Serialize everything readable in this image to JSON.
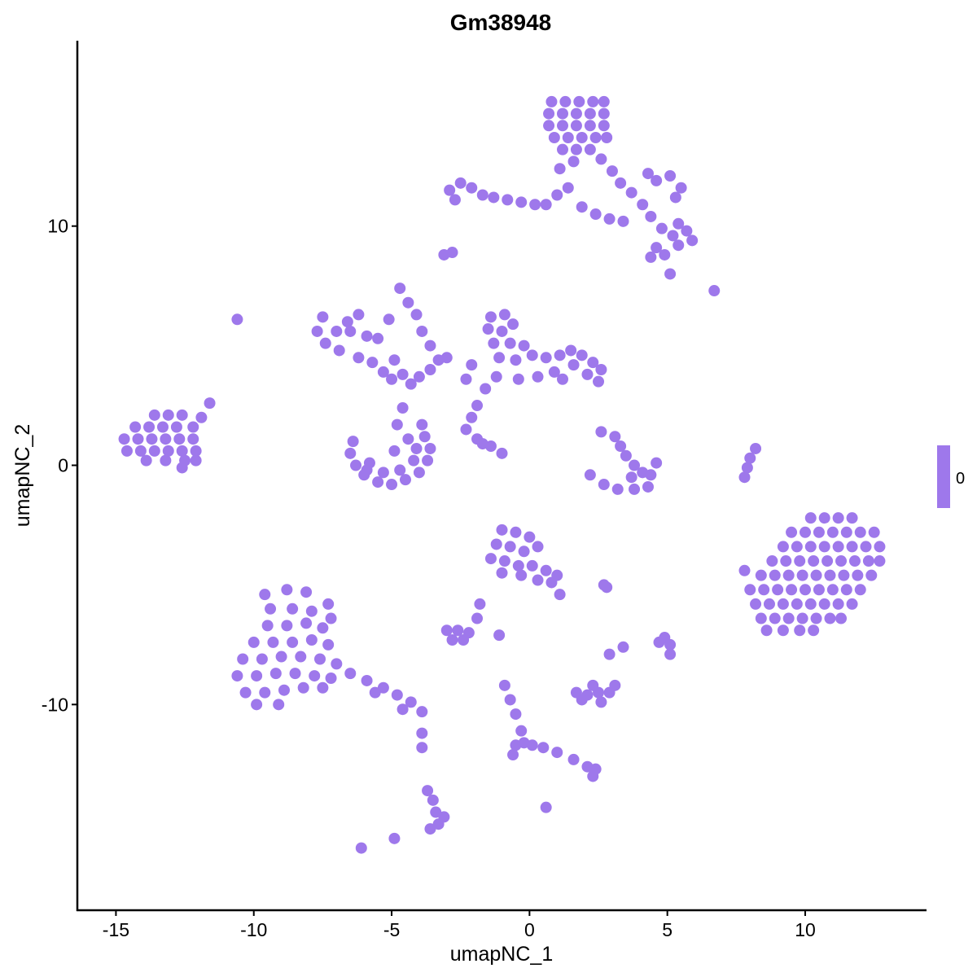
{
  "chart_data": {
    "type": "scatter",
    "title": "Gm38948",
    "xlabel": "umapNC_1",
    "ylabel": "umapNC_2",
    "xlim": [
      -16.4,
      14.4
    ],
    "ylim": [
      -18.6,
      17.75
    ],
    "x_ticks": [
      -15,
      -10,
      -5,
      0,
      5,
      10
    ],
    "x_tick_labels": [
      "-15",
      "-10",
      "-5",
      "0",
      "5",
      "10"
    ],
    "y_ticks": [
      -10,
      0,
      10
    ],
    "y_tick_labels": [
      "-10",
      "0",
      "10"
    ],
    "grid": false,
    "point_color": "#9E78EB",
    "legend": {
      "placement": "right",
      "type": "colorbar",
      "labels": [
        "0"
      ],
      "color": "#9E78EB"
    },
    "points": [
      [
        0.8,
        15.2
      ],
      [
        1.3,
        15.2
      ],
      [
        1.8,
        15.2
      ],
      [
        2.3,
        15.2
      ],
      [
        2.7,
        15.2
      ],
      [
        0.7,
        14.7
      ],
      [
        1.2,
        14.7
      ],
      [
        1.7,
        14.7
      ],
      [
        2.2,
        14.7
      ],
      [
        2.7,
        14.7
      ],
      [
        0.7,
        14.2
      ],
      [
        1.2,
        14.2
      ],
      [
        1.7,
        14.2
      ],
      [
        2.2,
        14.2
      ],
      [
        2.7,
        14.2
      ],
      [
        0.9,
        13.7
      ],
      [
        1.4,
        13.7
      ],
      [
        1.9,
        13.7
      ],
      [
        2.4,
        13.7
      ],
      [
        2.8,
        13.7
      ],
      [
        1.2,
        13.2
      ],
      [
        1.7,
        13.2
      ],
      [
        2.2,
        13.2
      ],
      [
        2.6,
        12.8
      ],
      [
        3.0,
        12.3
      ],
      [
        3.3,
        11.8
      ],
      [
        3.7,
        11.4
      ],
      [
        4.1,
        10.9
      ],
      [
        4.4,
        10.4
      ],
      [
        4.8,
        9.9
      ],
      [
        5.2,
        9.6
      ],
      [
        5.7,
        9.8
      ],
      [
        5.9,
        9.4
      ],
      [
        5.4,
        9.2
      ],
      [
        4.6,
        9.1
      ],
      [
        4.4,
        8.7
      ],
      [
        4.9,
        8.8
      ],
      [
        5.4,
        10.1
      ],
      [
        4.6,
        11.9
      ],
      [
        5.1,
        12.1
      ],
      [
        5.5,
        11.6
      ],
      [
        5.3,
        11.2
      ],
      [
        4.3,
        12.2
      ],
      [
        -2.9,
        11.5
      ],
      [
        -2.5,
        11.8
      ],
      [
        -2.1,
        11.6
      ],
      [
        -1.7,
        11.3
      ],
      [
        -2.7,
        11.1
      ],
      [
        -1.3,
        11.2
      ],
      [
        -0.8,
        11.1
      ],
      [
        -0.3,
        11.0
      ],
      [
        0.2,
        10.9
      ],
      [
        0.6,
        10.9
      ],
      [
        1.0,
        11.3
      ],
      [
        1.4,
        11.6
      ],
      [
        1.9,
        10.8
      ],
      [
        2.4,
        10.5
      ],
      [
        2.9,
        10.3
      ],
      [
        3.4,
        10.2
      ],
      [
        1.1,
        12.4
      ],
      [
        1.6,
        12.7
      ],
      [
        -3.1,
        8.8
      ],
      [
        -2.8,
        8.9
      ],
      [
        6.7,
        7.3
      ],
      [
        5.1,
        8.0
      ],
      [
        -10.6,
        6.1
      ],
      [
        -13.6,
        2.1
      ],
      [
        -13.1,
        2.1
      ],
      [
        -12.6,
        2.1
      ],
      [
        -14.3,
        1.6
      ],
      [
        -13.8,
        1.6
      ],
      [
        -13.3,
        1.6
      ],
      [
        -12.8,
        1.6
      ],
      [
        -14.7,
        1.1
      ],
      [
        -14.2,
        1.1
      ],
      [
        -13.7,
        1.1
      ],
      [
        -13.2,
        1.1
      ],
      [
        -12.7,
        1.1
      ],
      [
        -12.2,
        1.1
      ],
      [
        -14.6,
        0.6
      ],
      [
        -14.1,
        0.6
      ],
      [
        -13.6,
        0.6
      ],
      [
        -13.1,
        0.6
      ],
      [
        -12.6,
        0.6
      ],
      [
        -12.1,
        0.6
      ],
      [
        -13.9,
        0.2
      ],
      [
        -13.2,
        0.2
      ],
      [
        -12.5,
        0.2
      ],
      [
        -12.1,
        0.2
      ],
      [
        -11.9,
        2.0
      ],
      [
        -11.6,
        2.6
      ],
      [
        -12.2,
        1.6
      ],
      [
        -12.6,
        -0.1
      ],
      [
        -7.5,
        6.2
      ],
      [
        -7.7,
        5.6
      ],
      [
        -7.4,
        5.1
      ],
      [
        -7.0,
        5.6
      ],
      [
        -6.9,
        4.8
      ],
      [
        -6.5,
        5.6
      ],
      [
        -6.2,
        4.5
      ],
      [
        -5.9,
        5.4
      ],
      [
        -5.5,
        5.3
      ],
      [
        -6.6,
        6.0
      ],
      [
        -5.7,
        4.3
      ],
      [
        -5.3,
        3.9
      ],
      [
        -5.0,
        3.6
      ],
      [
        -4.6,
        3.8
      ],
      [
        -4.9,
        4.4
      ],
      [
        -4.3,
        3.4
      ],
      [
        -4.0,
        3.7
      ],
      [
        -3.6,
        4.0
      ],
      [
        -3.3,
        4.4
      ],
      [
        -3.0,
        4.5
      ],
      [
        -4.7,
        7.4
      ],
      [
        -4.4,
        6.8
      ],
      [
        -4.1,
        6.3
      ],
      [
        -3.9,
        5.6
      ],
      [
        -3.6,
        5.0
      ],
      [
        -5.1,
        6.1
      ],
      [
        -6.2,
        6.3
      ],
      [
        -6.4,
        1.0
      ],
      [
        -6.5,
        0.5
      ],
      [
        -6.3,
        0.0
      ],
      [
        -6.0,
        -0.4
      ],
      [
        -5.5,
        -0.7
      ],
      [
        -5.0,
        -0.8
      ],
      [
        -4.5,
        -0.6
      ],
      [
        -4.0,
        -0.3
      ],
      [
        -3.7,
        0.2
      ],
      [
        -3.6,
        0.7
      ],
      [
        -3.8,
        1.2
      ],
      [
        -5.8,
        0.1
      ],
      [
        -5.3,
        -0.3
      ],
      [
        -4.7,
        -0.2
      ],
      [
        -4.2,
        0.2
      ],
      [
        -4.1,
        0.7
      ],
      [
        -5.9,
        -0.2
      ],
      [
        -4.4,
        1.1
      ],
      [
        -4.8,
        1.7
      ],
      [
        -4.6,
        2.4
      ],
      [
        -3.9,
        1.7
      ],
      [
        -4.9,
        0.6
      ],
      [
        -1.4,
        6.2
      ],
      [
        -0.9,
        6.3
      ],
      [
        -1.5,
        5.7
      ],
      [
        -1.0,
        5.6
      ],
      [
        -0.6,
        5.9
      ],
      [
        -1.3,
        5.1
      ],
      [
        -0.7,
        5.1
      ],
      [
        -0.2,
        5.0
      ],
      [
        -1.1,
        4.5
      ],
      [
        -0.5,
        4.4
      ],
      [
        0.1,
        4.6
      ],
      [
        0.6,
        4.5
      ],
      [
        1.1,
        4.6
      ],
      [
        1.5,
        4.8
      ],
      [
        1.9,
        4.6
      ],
      [
        2.3,
        4.3
      ],
      [
        2.6,
        4.0
      ],
      [
        2.1,
        3.8
      ],
      [
        1.6,
        4.2
      ],
      [
        0.9,
        3.9
      ],
      [
        0.3,
        3.7
      ],
      [
        -0.4,
        3.6
      ],
      [
        -1.2,
        3.7
      ],
      [
        -1.6,
        3.2
      ],
      [
        -1.9,
        2.5
      ],
      [
        -2.1,
        2.0
      ],
      [
        -2.3,
        3.6
      ],
      [
        -2.1,
        4.2
      ],
      [
        2.5,
        3.5
      ],
      [
        1.2,
        3.6
      ],
      [
        -2.3,
        1.5
      ],
      [
        -1.9,
        1.1
      ],
      [
        -1.4,
        0.8
      ],
      [
        -1.0,
        0.5
      ],
      [
        -1.7,
        0.9
      ],
      [
        3.1,
        1.2
      ],
      [
        3.3,
        0.8
      ],
      [
        3.5,
        0.4
      ],
      [
        3.8,
        0.0
      ],
      [
        4.1,
        -0.3
      ],
      [
        4.4,
        -0.4
      ],
      [
        4.3,
        -0.9
      ],
      [
        3.8,
        -1.0
      ],
      [
        3.2,
        -1.0
      ],
      [
        2.7,
        -0.8
      ],
      [
        2.2,
        -0.4
      ],
      [
        2.6,
        1.4
      ],
      [
        3.7,
        -0.5
      ],
      [
        4.6,
        0.1
      ],
      [
        7.9,
        -0.1
      ],
      [
        8.0,
        0.3
      ],
      [
        8.2,
        0.7
      ],
      [
        7.8,
        -0.5
      ],
      [
        10.2,
        -2.2
      ],
      [
        10.7,
        -2.2
      ],
      [
        11.2,
        -2.2
      ],
      [
        11.7,
        -2.2
      ],
      [
        9.5,
        -2.8
      ],
      [
        10.0,
        -2.8
      ],
      [
        10.5,
        -2.8
      ],
      [
        11.0,
        -2.8
      ],
      [
        11.5,
        -2.8
      ],
      [
        12.0,
        -2.8
      ],
      [
        12.5,
        -2.8
      ],
      [
        9.2,
        -3.4
      ],
      [
        9.7,
        -3.4
      ],
      [
        10.2,
        -3.4
      ],
      [
        10.7,
        -3.4
      ],
      [
        11.2,
        -3.4
      ],
      [
        11.7,
        -3.4
      ],
      [
        12.2,
        -3.4
      ],
      [
        12.7,
        -3.4
      ],
      [
        8.8,
        -4.0
      ],
      [
        9.3,
        -4.0
      ],
      [
        9.8,
        -4.0
      ],
      [
        10.3,
        -4.0
      ],
      [
        10.8,
        -4.0
      ],
      [
        11.3,
        -4.0
      ],
      [
        11.8,
        -4.0
      ],
      [
        12.3,
        -4.0
      ],
      [
        12.7,
        -4.0
      ],
      [
        8.4,
        -4.6
      ],
      [
        8.9,
        -4.6
      ],
      [
        9.4,
        -4.6
      ],
      [
        9.9,
        -4.6
      ],
      [
        10.4,
        -4.6
      ],
      [
        10.9,
        -4.6
      ],
      [
        11.4,
        -4.6
      ],
      [
        11.9,
        -4.6
      ],
      [
        12.4,
        -4.6
      ],
      [
        8.0,
        -5.2
      ],
      [
        8.5,
        -5.2
      ],
      [
        9.0,
        -5.2
      ],
      [
        9.5,
        -5.2
      ],
      [
        10.0,
        -5.2
      ],
      [
        10.5,
        -5.2
      ],
      [
        11.0,
        -5.2
      ],
      [
        11.5,
        -5.2
      ],
      [
        12.0,
        -5.2
      ],
      [
        8.2,
        -5.8
      ],
      [
        8.7,
        -5.8
      ],
      [
        9.2,
        -5.8
      ],
      [
        9.7,
        -5.8
      ],
      [
        10.2,
        -5.8
      ],
      [
        10.7,
        -5.8
      ],
      [
        11.2,
        -5.8
      ],
      [
        11.7,
        -5.8
      ],
      [
        8.4,
        -6.4
      ],
      [
        8.9,
        -6.4
      ],
      [
        9.4,
        -6.4
      ],
      [
        9.9,
        -6.4
      ],
      [
        10.4,
        -6.4
      ],
      [
        10.9,
        -6.4
      ],
      [
        11.3,
        -6.4
      ],
      [
        8.6,
        -6.9
      ],
      [
        9.2,
        -6.9
      ],
      [
        9.8,
        -6.9
      ],
      [
        10.3,
        -6.9
      ],
      [
        7.8,
        -4.4
      ],
      [
        -1.0,
        -2.7
      ],
      [
        -0.5,
        -2.8
      ],
      [
        0.0,
        -3.0
      ],
      [
        0.3,
        -3.4
      ],
      [
        -1.2,
        -3.3
      ],
      [
        -0.7,
        -3.4
      ],
      [
        -0.2,
        -3.6
      ],
      [
        -1.4,
        -3.9
      ],
      [
        -0.9,
        -4.0
      ],
      [
        -0.4,
        -4.2
      ],
      [
        0.1,
        -4.2
      ],
      [
        0.6,
        -4.4
      ],
      [
        -1.0,
        -4.5
      ],
      [
        -0.3,
        -4.6
      ],
      [
        0.3,
        -4.8
      ],
      [
        0.8,
        -4.9
      ],
      [
        1.1,
        -5.4
      ],
      [
        1.0,
        -4.6
      ],
      [
        2.7,
        -5.0
      ],
      [
        2.8,
        -5.1
      ],
      [
        -9.6,
        -5.4
      ],
      [
        -8.8,
        -5.2
      ],
      [
        -8.1,
        -5.3
      ],
      [
        -9.4,
        -6.0
      ],
      [
        -8.6,
        -6.0
      ],
      [
        -7.9,
        -6.1
      ],
      [
        -9.5,
        -6.7
      ],
      [
        -8.8,
        -6.7
      ],
      [
        -8.1,
        -6.6
      ],
      [
        -7.5,
        -6.8
      ],
      [
        -10.0,
        -7.4
      ],
      [
        -9.3,
        -7.4
      ],
      [
        -8.6,
        -7.4
      ],
      [
        -7.9,
        -7.3
      ],
      [
        -7.3,
        -7.5
      ],
      [
        -10.4,
        -8.1
      ],
      [
        -9.7,
        -8.1
      ],
      [
        -9.0,
        -8.0
      ],
      [
        -8.3,
        -8.0
      ],
      [
        -7.6,
        -8.1
      ],
      [
        -7.0,
        -8.3
      ],
      [
        -10.6,
        -8.8
      ],
      [
        -9.9,
        -8.8
      ],
      [
        -9.2,
        -8.7
      ],
      [
        -8.5,
        -8.7
      ],
      [
        -7.8,
        -8.8
      ],
      [
        -7.2,
        -8.9
      ],
      [
        -10.3,
        -9.5
      ],
      [
        -9.6,
        -9.5
      ],
      [
        -8.9,
        -9.4
      ],
      [
        -8.2,
        -9.3
      ],
      [
        -7.5,
        -9.3
      ],
      [
        -9.9,
        -10.0
      ],
      [
        -9.1,
        -10.0
      ],
      [
        -6.5,
        -8.7
      ],
      [
        -5.9,
        -9.0
      ],
      [
        -5.3,
        -9.3
      ],
      [
        -4.8,
        -9.6
      ],
      [
        -4.3,
        -9.9
      ],
      [
        -3.9,
        -10.3
      ],
      [
        -4.6,
        -10.2
      ],
      [
        -5.6,
        -9.5
      ],
      [
        -7.2,
        -6.4
      ],
      [
        -7.3,
        -5.8
      ],
      [
        -3.0,
        -6.9
      ],
      [
        -2.6,
        -6.9
      ],
      [
        -2.2,
        -7.0
      ],
      [
        -2.8,
        -7.3
      ],
      [
        -2.4,
        -7.3
      ],
      [
        -1.8,
        -5.8
      ],
      [
        -1.1,
        -7.1
      ],
      [
        -1.9,
        -6.4
      ],
      [
        1.7,
        -9.5
      ],
      [
        2.1,
        -9.6
      ],
      [
        2.5,
        -9.5
      ],
      [
        2.9,
        -9.5
      ],
      [
        2.3,
        -9.2
      ],
      [
        1.9,
        -9.8
      ],
      [
        2.6,
        -9.9
      ],
      [
        3.1,
        -9.2
      ],
      [
        -0.9,
        -9.2
      ],
      [
        -0.7,
        -9.8
      ],
      [
        -0.5,
        -10.4
      ],
      [
        -0.3,
        -11.1
      ],
      [
        -0.2,
        -11.6
      ],
      [
        -0.5,
        -11.7
      ],
      [
        0.1,
        -11.7
      ],
      [
        0.5,
        -11.8
      ],
      [
        1.0,
        -12.0
      ],
      [
        1.6,
        -12.3
      ],
      [
        2.1,
        -12.6
      ],
      [
        2.4,
        -12.7
      ],
      [
        2.3,
        -13.0
      ],
      [
        -0.6,
        -12.1
      ],
      [
        0.6,
        -14.3
      ],
      [
        -3.7,
        -13.6
      ],
      [
        -3.5,
        -14.0
      ],
      [
        -3.4,
        -14.5
      ],
      [
        -3.3,
        -15.0
      ],
      [
        -3.6,
        -15.2
      ],
      [
        -3.1,
        -14.7
      ],
      [
        -3.9,
        -11.2
      ],
      [
        -3.9,
        -11.8
      ],
      [
        -6.1,
        -16.0
      ],
      [
        -4.9,
        -15.6
      ],
      [
        2.9,
        -7.9
      ],
      [
        3.4,
        -7.6
      ],
      [
        4.9,
        -7.2
      ],
      [
        5.1,
        -7.5
      ],
      [
        5.1,
        -7.9
      ],
      [
        4.7,
        -7.4
      ]
    ]
  }
}
